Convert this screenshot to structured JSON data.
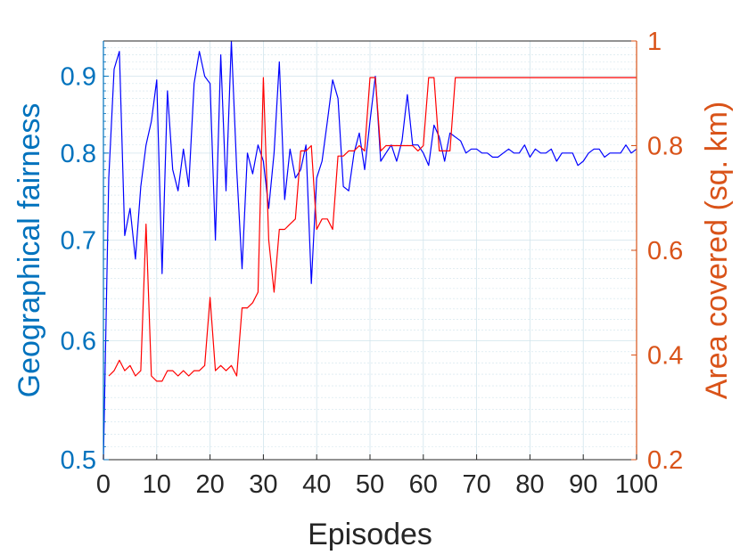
{
  "chart_data": {
    "type": "line",
    "xlabel": "Episodes",
    "ylabel_left": "Geographical fairness",
    "ylabel_right": "Area covered (sq. km)",
    "xlim": [
      0,
      100
    ],
    "ylim_left": [
      0.5,
      0.95
    ],
    "ylim_right": [
      0.2,
      1.0
    ],
    "left_scale": "log",
    "right_scale": "linear",
    "grid": true,
    "x_ticks": [
      "0",
      "10",
      "20",
      "30",
      "40",
      "50",
      "60",
      "70",
      "80",
      "90",
      "100"
    ],
    "x_tick_values": [
      0,
      10,
      20,
      30,
      40,
      50,
      60,
      70,
      80,
      90,
      100
    ],
    "y_left_ticks": [
      "0.5",
      "0.6",
      "0.7",
      "0.8",
      "0.9"
    ],
    "y_left_tick_values": [
      0.5,
      0.6,
      0.7,
      0.8,
      0.9
    ],
    "y_right_ticks": [
      "0.2",
      "0.4",
      "0.6",
      "0.8",
      "1"
    ],
    "y_right_tick_values": [
      0.2,
      0.4,
      0.6,
      0.8,
      1.0
    ],
    "colors": {
      "left_axis": "#0072BD",
      "right_axis": "#D95319",
      "fairness_line": "#0000FF",
      "area_line": "#FF0000",
      "grid": "#d0e4ec",
      "text": "#262626"
    },
    "series": [
      {
        "axis": "left",
        "color": "#0000FF",
        "x": [
          0,
          1,
          2,
          3,
          4,
          5,
          6,
          7,
          8,
          9,
          10,
          11,
          12,
          13,
          14,
          15,
          16,
          17,
          18,
          19,
          20,
          21,
          22,
          23,
          24,
          25,
          26,
          27,
          28,
          29,
          30,
          31,
          32,
          33,
          34,
          35,
          36,
          37,
          38,
          39,
          40,
          41,
          42,
          43,
          44,
          45,
          46,
          47,
          48,
          49,
          50,
          51,
          52,
          53,
          54,
          55,
          56,
          57,
          58,
          59,
          60,
          61,
          62,
          63,
          64,
          65,
          66,
          67,
          68,
          69,
          70,
          71,
          72,
          73,
          74,
          75,
          76,
          77,
          78,
          79,
          80,
          81,
          82,
          83,
          84,
          85,
          86,
          87,
          88,
          89,
          90,
          91,
          92,
          93,
          94,
          95,
          96,
          97,
          98,
          99,
          100
        ],
        "values": [
          0.5,
          0.77,
          0.91,
          0.935,
          0.705,
          0.735,
          0.68,
          0.76,
          0.81,
          0.84,
          0.895,
          0.665,
          0.88,
          0.78,
          0.755,
          0.805,
          0.76,
          0.89,
          0.935,
          0.9,
          0.89,
          0.7,
          0.93,
          0.755,
          0.95,
          0.78,
          0.67,
          0.8,
          0.775,
          0.81,
          0.79,
          0.735,
          0.8,
          0.92,
          0.745,
          0.805,
          0.77,
          0.78,
          0.81,
          0.655,
          0.77,
          0.79,
          0.84,
          0.895,
          0.87,
          0.76,
          0.755,
          0.8,
          0.825,
          0.78,
          0.84,
          0.9,
          0.79,
          0.8,
          0.81,
          0.79,
          0.815,
          0.875,
          0.81,
          0.81,
          0.8,
          0.785,
          0.835,
          0.82,
          0.79,
          0.825,
          0.82,
          0.815,
          0.8,
          0.805,
          0.805,
          0.8,
          0.8,
          0.795,
          0.795,
          0.8,
          0.805,
          0.8,
          0.8,
          0.81,
          0.795,
          0.805,
          0.8,
          0.8,
          0.805,
          0.79,
          0.8,
          0.8,
          0.8,
          0.785,
          0.79,
          0.8,
          0.805,
          0.805,
          0.795,
          0.8,
          0.8,
          0.8,
          0.81,
          0.8,
          0.805
        ]
      },
      {
        "axis": "right",
        "color": "#FF0000",
        "x": [
          1,
          2,
          3,
          4,
          5,
          6,
          7,
          8,
          9,
          10,
          11,
          12,
          13,
          14,
          15,
          16,
          17,
          18,
          19,
          20,
          21,
          22,
          23,
          24,
          25,
          26,
          27,
          28,
          29,
          30,
          31,
          32,
          33,
          34,
          35,
          36,
          37,
          38,
          39,
          40,
          41,
          42,
          43,
          44,
          45,
          46,
          47,
          48,
          49,
          50,
          51,
          52,
          53,
          54,
          55,
          56,
          57,
          58,
          59,
          60,
          61,
          62,
          63,
          64,
          65,
          66,
          67,
          68,
          69,
          70,
          71,
          72,
          73,
          74,
          75,
          76,
          77,
          78,
          79,
          80,
          81,
          82,
          83,
          84,
          85,
          86,
          87,
          88,
          89,
          90,
          91,
          92,
          93,
          94,
          95,
          96,
          97,
          98,
          99,
          100
        ],
        "values": [
          0.36,
          0.37,
          0.39,
          0.37,
          0.38,
          0.36,
          0.37,
          0.65,
          0.36,
          0.35,
          0.35,
          0.37,
          0.37,
          0.36,
          0.37,
          0.36,
          0.37,
          0.37,
          0.38,
          0.51,
          0.37,
          0.38,
          0.37,
          0.38,
          0.36,
          0.49,
          0.49,
          0.5,
          0.52,
          0.93,
          0.62,
          0.52,
          0.64,
          0.64,
          0.65,
          0.66,
          0.79,
          0.79,
          0.8,
          0.64,
          0.66,
          0.66,
          0.64,
          0.78,
          0.78,
          0.79,
          0.79,
          0.8,
          0.79,
          0.93,
          0.93,
          0.79,
          0.8,
          0.8,
          0.8,
          0.8,
          0.8,
          0.8,
          0.79,
          0.8,
          0.93,
          0.93,
          0.79,
          0.79,
          0.79,
          0.93,
          0.93,
          0.93,
          0.93,
          0.93,
          0.93,
          0.93,
          0.93,
          0.93,
          0.93,
          0.93,
          0.93,
          0.93,
          0.93,
          0.93,
          0.93,
          0.93,
          0.93,
          0.93,
          0.93,
          0.93,
          0.93,
          0.93,
          0.93,
          0.93,
          0.93,
          0.93,
          0.93,
          0.93,
          0.93,
          0.93,
          0.93,
          0.93,
          0.93,
          0.93
        ]
      }
    ]
  }
}
